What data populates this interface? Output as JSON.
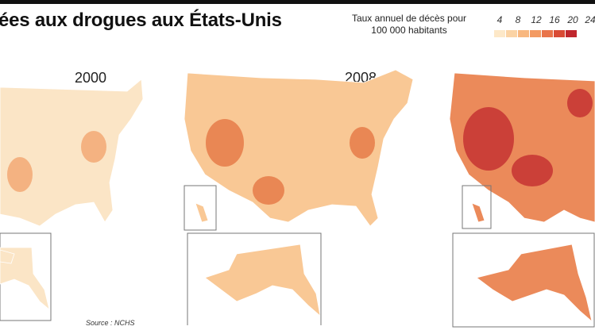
{
  "title": "ées aux drogues aux États-Unis",
  "legend": {
    "title_line1": "Taux annuel de décès pour",
    "title_line2": "100 000 habitants",
    "ticks": [
      "4",
      "8",
      "12",
      "16",
      "20",
      "24"
    ],
    "colors": [
      "#fde8c8",
      "#fbd3a4",
      "#f8b77f",
      "#f39a62",
      "#e9744a",
      "#d94b35",
      "#c0272d"
    ]
  },
  "panels": [
    {
      "year": "2000",
      "fill": "#fbe5c6",
      "hot": "#f2a06a"
    },
    {
      "year": "2008",
      "fill": "#f9c895",
      "hot": "#e3713f"
    },
    {
      "year": "",
      "fill": "#eb8a5a",
      "hot": "#c0272d"
    }
  ],
  "source": "Source : NCHS"
}
